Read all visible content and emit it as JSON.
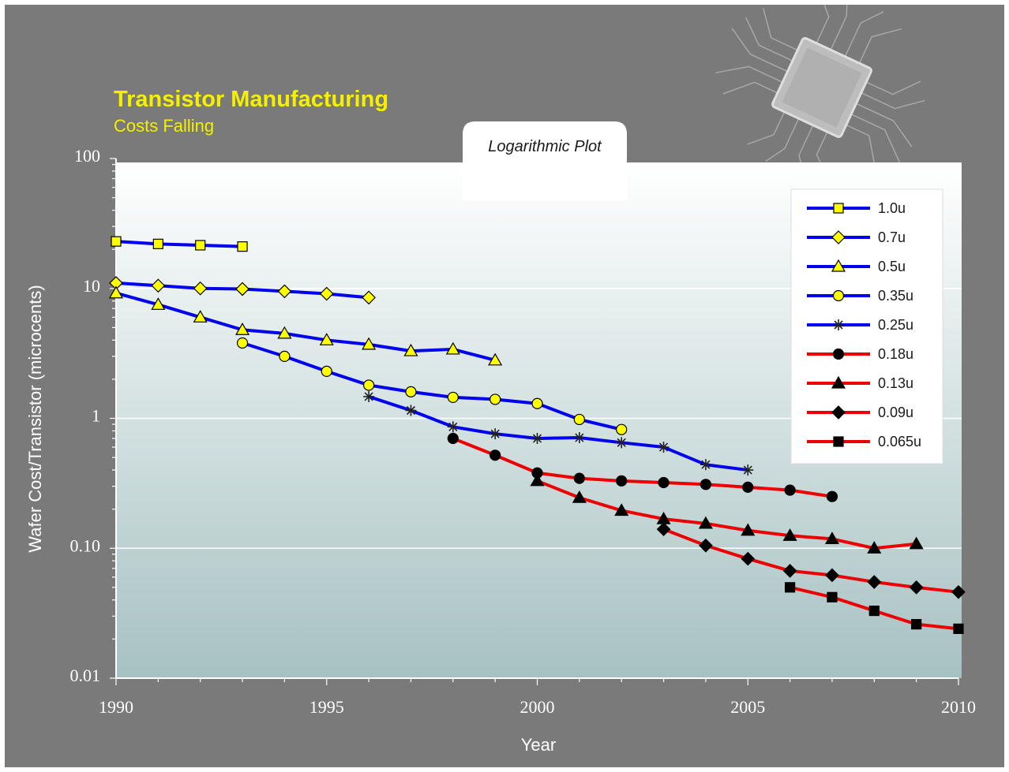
{
  "slide": {
    "title": "Transistor Manufacturing",
    "subtitle": "Costs Falling",
    "chip_icon": "microchip-icon"
  },
  "chart_data": {
    "type": "line",
    "annotation": "Logarithmic Plot",
    "xlabel": "Year",
    "ylabel": "Wafer Cost/Transistor (microcents)",
    "xlim": [
      1990,
      2010
    ],
    "ylim": [
      0.01,
      100
    ],
    "yscale": "log",
    "x_ticks": [
      "1990",
      "1995",
      "2000",
      "2005",
      "2010"
    ],
    "y_ticks": [
      {
        "value": 100,
        "label": "100"
      },
      {
        "value": 10,
        "label": "10"
      },
      {
        "value": 1,
        "label": "1"
      },
      {
        "value": 0.1,
        "label": "0.10"
      },
      {
        "value": 0.01,
        "label": "0.01"
      }
    ],
    "grid": "horizontal at decades",
    "legend_position": "top-right",
    "series": [
      {
        "name": "1.0u",
        "color": "#0000ee",
        "marker": "square",
        "marker_fill": "#ffff00",
        "points": [
          [
            1990,
            23
          ],
          [
            1991,
            22
          ],
          [
            1992,
            21.5
          ],
          [
            1993,
            21
          ]
        ]
      },
      {
        "name": "0.7u",
        "color": "#0000ee",
        "marker": "diamond",
        "marker_fill": "#ffff00",
        "points": [
          [
            1990,
            11
          ],
          [
            1991,
            10.5
          ],
          [
            1992,
            10
          ],
          [
            1993,
            9.9
          ],
          [
            1994,
            9.5
          ],
          [
            1995,
            9.1
          ],
          [
            1996,
            8.5
          ]
        ]
      },
      {
        "name": "0.5u",
        "color": "#0000ee",
        "marker": "triangle",
        "marker_fill": "#ffff00",
        "points": [
          [
            1990,
            9.2
          ],
          [
            1991,
            7.5
          ],
          [
            1992,
            6
          ],
          [
            1993,
            4.8
          ],
          [
            1994,
            4.5
          ],
          [
            1995,
            4
          ],
          [
            1996,
            3.7
          ],
          [
            1997,
            3.3
          ],
          [
            1998,
            3.4
          ],
          [
            1999,
            2.8
          ]
        ]
      },
      {
        "name": "0.35u",
        "color": "#0000ee",
        "marker": "circle",
        "marker_fill": "#ffff00",
        "points": [
          [
            1993,
            3.8
          ],
          [
            1994,
            3
          ],
          [
            1995,
            2.3
          ],
          [
            1996,
            1.8
          ],
          [
            1997,
            1.6
          ],
          [
            1998,
            1.45
          ],
          [
            1999,
            1.4
          ],
          [
            2000,
            1.3
          ],
          [
            2001,
            0.98
          ],
          [
            2002,
            0.82
          ]
        ]
      },
      {
        "name": "0.25u",
        "color": "#0000ee",
        "marker": "asterisk",
        "marker_fill": "#222222",
        "points": [
          [
            1996,
            1.47
          ],
          [
            1997,
            1.15
          ],
          [
            1998,
            0.86
          ],
          [
            1999,
            0.76
          ],
          [
            2000,
            0.7
          ],
          [
            2001,
            0.71
          ],
          [
            2002,
            0.65
          ],
          [
            2003,
            0.6
          ],
          [
            2004,
            0.44
          ],
          [
            2005,
            0.4
          ]
        ]
      },
      {
        "name": "0.18u",
        "color": "#ee0000",
        "marker": "circle",
        "marker_fill": "#000000",
        "points": [
          [
            1998,
            0.7
          ],
          [
            1999,
            0.52
          ],
          [
            2000,
            0.38
          ],
          [
            2001,
            0.345
          ],
          [
            2002,
            0.33
          ],
          [
            2003,
            0.32
          ],
          [
            2004,
            0.31
          ],
          [
            2005,
            0.295
          ],
          [
            2006,
            0.28
          ],
          [
            2007,
            0.25
          ]
        ]
      },
      {
        "name": "0.13u",
        "color": "#ee0000",
        "marker": "triangle",
        "marker_fill": "#000000",
        "points": [
          [
            2000,
            0.33
          ],
          [
            2001,
            0.245
          ],
          [
            2002,
            0.195
          ],
          [
            2003,
            0.168
          ],
          [
            2004,
            0.155
          ],
          [
            2005,
            0.137
          ],
          [
            2006,
            0.125
          ],
          [
            2007,
            0.118
          ],
          [
            2008,
            0.1
          ],
          [
            2009,
            0.108
          ]
        ]
      },
      {
        "name": "0.09u",
        "color": "#ee0000",
        "marker": "diamond",
        "marker_fill": "#000000",
        "points": [
          [
            2003,
            0.14
          ],
          [
            2004,
            0.105
          ],
          [
            2005,
            0.083
          ],
          [
            2006,
            0.067
          ],
          [
            2007,
            0.062
          ],
          [
            2008,
            0.055
          ],
          [
            2009,
            0.05
          ],
          [
            2010,
            0.046
          ]
        ]
      },
      {
        "name": "0.065u",
        "color": "#ee0000",
        "marker": "square",
        "marker_fill": "#000000",
        "points": [
          [
            2006,
            0.05
          ],
          [
            2007,
            0.042
          ],
          [
            2008,
            0.033
          ],
          [
            2009,
            0.026
          ],
          [
            2010,
            0.024
          ]
        ]
      }
    ]
  }
}
